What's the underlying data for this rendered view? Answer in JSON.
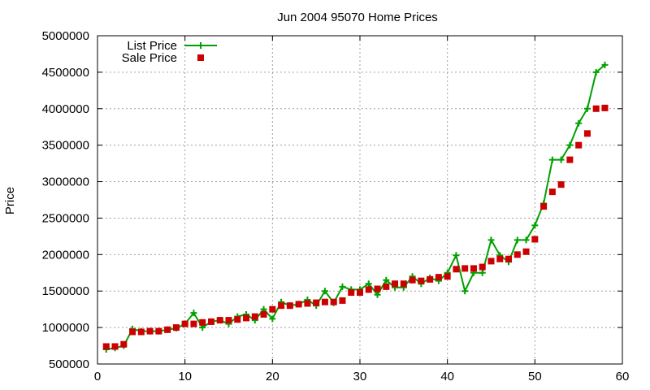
{
  "chart_data": {
    "type": "line",
    "title": "Jun 2004 95070 Home Prices",
    "xlabel": "",
    "ylabel": "Price",
    "xlim": [
      0,
      60
    ],
    "ylim": [
      500000,
      5000000
    ],
    "x_ticks": [
      0,
      10,
      20,
      30,
      40,
      50,
      60
    ],
    "y_ticks": [
      500000,
      1000000,
      1500000,
      2000000,
      2500000,
      3000000,
      3500000,
      4000000,
      4500000,
      5000000
    ],
    "grid": true,
    "legend_position": "top-left",
    "x": [
      1,
      2,
      3,
      4,
      5,
      6,
      7,
      8,
      9,
      10,
      11,
      12,
      13,
      14,
      15,
      16,
      17,
      18,
      19,
      20,
      21,
      22,
      23,
      24,
      25,
      26,
      27,
      28,
      29,
      30,
      31,
      32,
      33,
      34,
      35,
      36,
      37,
      38,
      39,
      40,
      41,
      42,
      43,
      44,
      45,
      46,
      47,
      48,
      49,
      50,
      51,
      52,
      53,
      54,
      55,
      56,
      57,
      58
    ],
    "series": [
      {
        "name": "List Price",
        "style": "lines+points",
        "color": "#00a000",
        "values": [
          700000,
          720000,
          750000,
          980000,
          950000,
          950000,
          950000,
          970000,
          990000,
          1050000,
          1200000,
          1000000,
          1080000,
          1100000,
          1050000,
          1150000,
          1180000,
          1100000,
          1250000,
          1120000,
          1350000,
          1300000,
          1320000,
          1380000,
          1300000,
          1500000,
          1340000,
          1560000,
          1520000,
          1520000,
          1600000,
          1450000,
          1650000,
          1550000,
          1550000,
          1700000,
          1600000,
          1680000,
          1640000,
          1750000,
          1990000,
          1500000,
          1750000,
          1750000,
          2200000,
          1990000,
          1900000,
          2200000,
          2200000,
          2400000,
          2700000,
          3300000,
          3300000,
          3500000,
          3800000,
          4000000,
          4500000,
          4600000
        ]
      },
      {
        "name": "Sale Price",
        "style": "points",
        "color": "#cc0000",
        "values": [
          740000,
          740000,
          770000,
          940000,
          940000,
          950000,
          950000,
          970000,
          1000000,
          1050000,
          1050000,
          1070000,
          1080000,
          1100000,
          1100000,
          1110000,
          1130000,
          1150000,
          1180000,
          1250000,
          1300000,
          1300000,
          1320000,
          1330000,
          1340000,
          1350000,
          1350000,
          1370000,
          1480000,
          1480000,
          1520000,
          1530000,
          1560000,
          1600000,
          1600000,
          1650000,
          1640000,
          1660000,
          1690000,
          1700000,
          1800000,
          1810000,
          1810000,
          1830000,
          1910000,
          1940000,
          1940000,
          2000000,
          2040000,
          2210000,
          2660000,
          2860000,
          2960000,
          3300000,
          3500000,
          3660000,
          4000000,
          4010000
        ]
      }
    ]
  }
}
